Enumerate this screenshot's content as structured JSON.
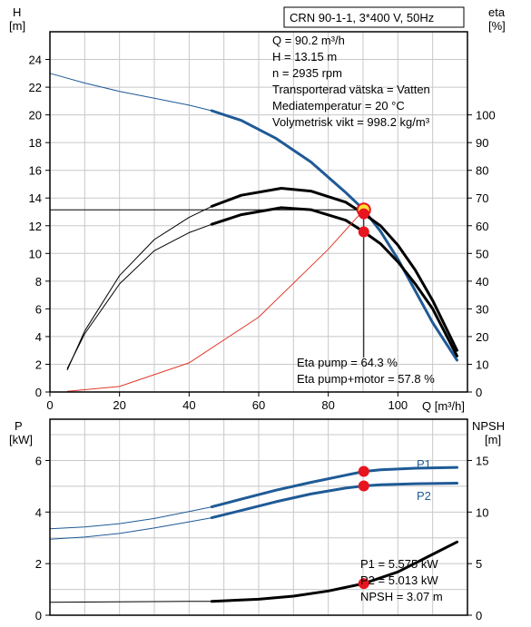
{
  "chart_data": [
    {
      "type": "line",
      "panel": "head_efficiency",
      "title": "CRN 90-1-1, 3*400 V, 50Hz",
      "xlabel": "Q [m³/h]",
      "ylabel_left": [
        "H",
        "[m]"
      ],
      "ylabel_right": [
        "eta",
        "[%]"
      ],
      "xlim": [
        0,
        120
      ],
      "ylim_left": [
        0,
        26
      ],
      "ylim_right": [
        0,
        130
      ],
      "x_ticks": [
        0,
        20,
        40,
        60,
        80,
        100
      ],
      "y_ticks_left": [
        0,
        2,
        4,
        6,
        8,
        10,
        12,
        14,
        16,
        18,
        20,
        22,
        24
      ],
      "y_ticks_right": [
        0,
        10,
        20,
        30,
        40,
        50,
        60,
        70,
        80,
        90,
        100
      ],
      "grid": true,
      "info_lines": [
        "Q = 90.2 m³/h",
        "H = 13.15 m",
        "n = 2935 rpm",
        "Transporterad vätska = Vatten",
        "Mediatemperatur = 20 °C",
        "Volymetrisk vikt = 998.2 kg/m³"
      ],
      "annotations": [
        "Eta pump = 64.3 %",
        "Eta pump+motor = 57.8 %"
      ],
      "series": [
        {
          "role": "head_thin",
          "axis": "left",
          "color": "#1f5a96",
          "x": [
            0,
            10,
            20,
            30,
            40,
            46.5
          ],
          "y": [
            23.0,
            22.3,
            21.7,
            21.2,
            20.7,
            20.3
          ]
        },
        {
          "role": "head_thick",
          "axis": "left",
          "color": "#1f5a96",
          "x": [
            46.5,
            55,
            65,
            75,
            85,
            90.2,
            95,
            100,
            105,
            110,
            117
          ],
          "y": [
            20.3,
            19.6,
            18.3,
            16.6,
            14.4,
            13.15,
            11.6,
            9.6,
            7.3,
            5.0,
            2.3
          ]
        },
        {
          "role": "eta_pump_thin",
          "axis": "right",
          "color": "#000000",
          "x": [
            5,
            10,
            20,
            30,
            40,
            46.5
          ],
          "y": [
            8,
            22,
            42,
            55,
            63,
            67
          ]
        },
        {
          "role": "eta_pump_thick",
          "axis": "right",
          "color": "#000000",
          "x": [
            46.5,
            55,
            66.5,
            75,
            85,
            90.2,
            95,
            100,
            105,
            110,
            117
          ],
          "y": [
            67,
            71,
            73.5,
            72.5,
            68.5,
            64.3,
            60,
            53,
            44,
            33,
            15
          ]
        },
        {
          "role": "eta_total_thin",
          "axis": "right",
          "color": "#000000",
          "x": [
            5,
            10,
            20,
            30,
            40,
            46.5
          ],
          "y": [
            8.5,
            21,
            39,
            51,
            57.5,
            60.5
          ]
        },
        {
          "role": "eta_total_thick",
          "axis": "right",
          "color": "#000000",
          "x": [
            46.5,
            55,
            66.5,
            75,
            85,
            90.2,
            95,
            100,
            105,
            110,
            117
          ],
          "y": [
            60.5,
            64,
            66.5,
            65.8,
            62,
            57.8,
            53.5,
            47,
            39,
            30,
            13
          ]
        },
        {
          "role": "system_curve",
          "axis": "left",
          "color": "#e03a2a",
          "x": [
            5,
            20,
            40,
            60,
            80,
            90.2
          ],
          "y": [
            0.05,
            0.4,
            2.1,
            5.4,
            10.3,
            13.15
          ]
        }
      ],
      "duty_point": {
        "x": 90.2,
        "y": 13.15
      },
      "points": [
        {
          "x": 90.2,
          "y": 12.86,
          "axis": "left",
          "color": "#e8141e"
        },
        {
          "x": 90.2,
          "y": 11.56,
          "axis": "left",
          "color": "#e8141e"
        }
      ]
    },
    {
      "type": "line",
      "panel": "power_npsh",
      "ylabel_left": [
        "P",
        "[kW]"
      ],
      "ylabel_right": [
        "NPSH",
        "[m]"
      ],
      "xlim": [
        0,
        120
      ],
      "ylim_left": [
        0,
        7.6
      ],
      "ylim_right": [
        0,
        19
      ],
      "y_ticks_left": [
        0,
        2,
        4,
        6
      ],
      "y_ticks_right": [
        0,
        5,
        10,
        15
      ],
      "grid": true,
      "annotations": [
        "P1 = 5.575 kW",
        "P2 = 5.013 kW",
        "NPSH = 3.07 m"
      ],
      "series": [
        {
          "name": "P1",
          "role": "p1_thin",
          "axis": "left",
          "color": "#1f5a96",
          "x": [
            0,
            10,
            20,
            30,
            40,
            46.5
          ],
          "y": [
            3.35,
            3.42,
            3.55,
            3.75,
            4.02,
            4.2
          ]
        },
        {
          "name": "P1",
          "role": "p1_thick",
          "axis": "left",
          "color": "#1f5a96",
          "x": [
            46.5,
            55,
            65,
            75,
            85,
            90.2,
            95,
            105,
            117
          ],
          "y": [
            4.2,
            4.5,
            4.85,
            5.15,
            5.43,
            5.575,
            5.64,
            5.7,
            5.73
          ]
        },
        {
          "name": "P2",
          "role": "p2_thin",
          "axis": "left",
          "color": "#1f5a96",
          "x": [
            0,
            10,
            20,
            30,
            40,
            46.5
          ],
          "y": [
            2.95,
            3.03,
            3.17,
            3.38,
            3.62,
            3.78
          ]
        },
        {
          "name": "P2",
          "role": "p2_thick",
          "axis": "left",
          "color": "#1f5a96",
          "x": [
            46.5,
            55,
            65,
            75,
            85,
            90.2,
            95,
            105,
            117
          ],
          "y": [
            3.78,
            4.06,
            4.4,
            4.7,
            4.93,
            5.013,
            5.06,
            5.1,
            5.12
          ]
        },
        {
          "role": "npsh_thin",
          "axis": "right",
          "color": "#000000",
          "x": [
            0,
            20,
            40,
            46.5
          ],
          "y": [
            1.25,
            1.3,
            1.35,
            1.35
          ]
        },
        {
          "role": "npsh_thick",
          "axis": "right",
          "color": "#000000",
          "x": [
            46.5,
            60,
            70,
            80,
            90.2,
            100,
            110,
            117
          ],
          "y": [
            1.35,
            1.55,
            1.85,
            2.35,
            3.07,
            4.2,
            5.9,
            7.1
          ]
        }
      ],
      "points": [
        {
          "x": 90.2,
          "y": 5.575,
          "axis": "left",
          "color": "#e8141e"
        },
        {
          "x": 90.2,
          "y": 5.013,
          "axis": "left",
          "color": "#e8141e"
        },
        {
          "x": 90.2,
          "y": 3.07,
          "axis": "right",
          "color": "#e8141e"
        }
      ]
    }
  ]
}
